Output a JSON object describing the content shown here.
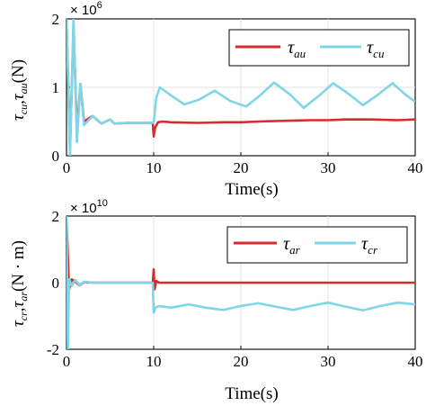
{
  "chart_data": [
    {
      "type": "line",
      "xlabel": "Time(s)",
      "ylabel": "τcu,τau(N)",
      "ylabel_parts": {
        "tau1": "τ",
        "sub1": "cu",
        "sep": ",",
        "tau2": "τ",
        "sub2": "au",
        "unit": "(N)"
      },
      "xlim": [
        0,
        40
      ],
      "ylim": [
        0,
        2000000
      ],
      "xticks": [
        "0",
        "10",
        "20",
        "30",
        "40"
      ],
      "yticks": [
        "0",
        "1",
        "2"
      ],
      "exponent": {
        "base": "× 10",
        "power": "6"
      },
      "grid": true,
      "legend_position": "top-right",
      "series": [
        {
          "name": "τau",
          "symbol": "τ",
          "sub": "au",
          "color": "#d62c2c",
          "x": [
            0,
            0.4,
            0.8,
            1.2,
            1.6,
            2.0,
            3.0,
            4.0,
            5.0,
            5.5,
            7,
            9,
            9.9,
            10,
            10.05,
            10.2,
            10.5,
            11,
            12,
            15,
            18,
            20,
            22,
            25,
            28,
            30,
            32,
            35,
            38,
            40
          ],
          "y": [
            2000000,
            100000,
            1900000,
            350000,
            1050000,
            500000,
            580000,
            470000,
            530000,
            470000,
            480000,
            480000,
            480000,
            280000,
            330000,
            420000,
            490000,
            500000,
            490000,
            480000,
            490000,
            490000,
            500000,
            510000,
            520000,
            520000,
            530000,
            530000,
            520000,
            530000
          ]
        },
        {
          "name": "τcu",
          "symbol": "τ",
          "sub": "cu",
          "color": "#7fd6e6",
          "x": [
            0,
            0.4,
            0.8,
            1.2,
            1.6,
            2.0,
            3.0,
            4.0,
            5.0,
            5.5,
            7,
            9,
            9.9,
            10,
            10.3,
            10.7,
            12,
            13.5,
            15.2,
            17,
            18.8,
            20.6,
            22.2,
            23.8,
            25.6,
            27.2,
            29,
            30.6,
            32.4,
            34,
            35.6,
            37.4,
            39,
            40
          ],
          "y": [
            2000000,
            0,
            2000000,
            200000,
            1050000,
            450000,
            580000,
            470000,
            530000,
            470000,
            480000,
            480000,
            480000,
            480000,
            850000,
            1000000,
            880000,
            750000,
            820000,
            950000,
            800000,
            720000,
            880000,
            1070000,
            900000,
            700000,
            880000,
            1060000,
            900000,
            740000,
            880000,
            1060000,
            880000,
            790000
          ]
        }
      ]
    },
    {
      "type": "line",
      "xlabel": "Time(s)",
      "ylabel": "τcr,τar(N·m)",
      "ylabel_parts": {
        "tau1": "τ",
        "sub1": "cr",
        "sep": ",",
        "tau2": "τ",
        "sub2": "ar",
        "unit": "(N · m)"
      },
      "xlim": [
        0,
        40
      ],
      "ylim": [
        -20000000000,
        20000000000
      ],
      "xticks": [
        "0",
        "10",
        "20",
        "30",
        "40"
      ],
      "yticks": [
        "-2",
        "0",
        "2"
      ],
      "exponent": {
        "base": "× 10",
        "power": "10"
      },
      "grid": true,
      "legend_position": "top-right",
      "series": [
        {
          "name": "τar",
          "symbol": "τ",
          "sub": "ar",
          "color": "#d62c2c",
          "x": [
            0,
            0.3,
            0.6,
            1.0,
            1.5,
            2.0,
            3.0,
            5,
            9.9,
            10,
            10.1,
            10.3,
            10.6,
            11,
            15,
            20,
            25,
            30,
            35,
            40
          ],
          "y": [
            19000000000,
            -2000000000,
            1000000000,
            300000000,
            -800000000,
            200000000,
            0,
            0,
            0,
            4000000000,
            -2000000000,
            500000000,
            0,
            0,
            0,
            0,
            0,
            0,
            0,
            0
          ]
        },
        {
          "name": "τcr",
          "symbol": "τ",
          "sub": "cr",
          "color": "#7fd6e6",
          "x": [
            0,
            0.15,
            0.3,
            0.6,
            1.0,
            1.5,
            2.0,
            3.0,
            5,
            9.9,
            10,
            10.2,
            10.6,
            12,
            14,
            16,
            18,
            20,
            22,
            24,
            26,
            28,
            30,
            32,
            34,
            36,
            38,
            40
          ],
          "y": [
            20000000000,
            -20000000000,
            1000000000,
            -1000000000,
            800000000,
            -700000000,
            300000000,
            0,
            0,
            0,
            -9000000000,
            -7500000000,
            -7000000000,
            -7500000000,
            -6500000000,
            -7500000000,
            -8200000000,
            -7000000000,
            -6200000000,
            -7200000000,
            -8200000000,
            -7000000000,
            -6000000000,
            -7200000000,
            -8300000000,
            -7000000000,
            -6000000000,
            -6500000000
          ]
        }
      ]
    }
  ]
}
